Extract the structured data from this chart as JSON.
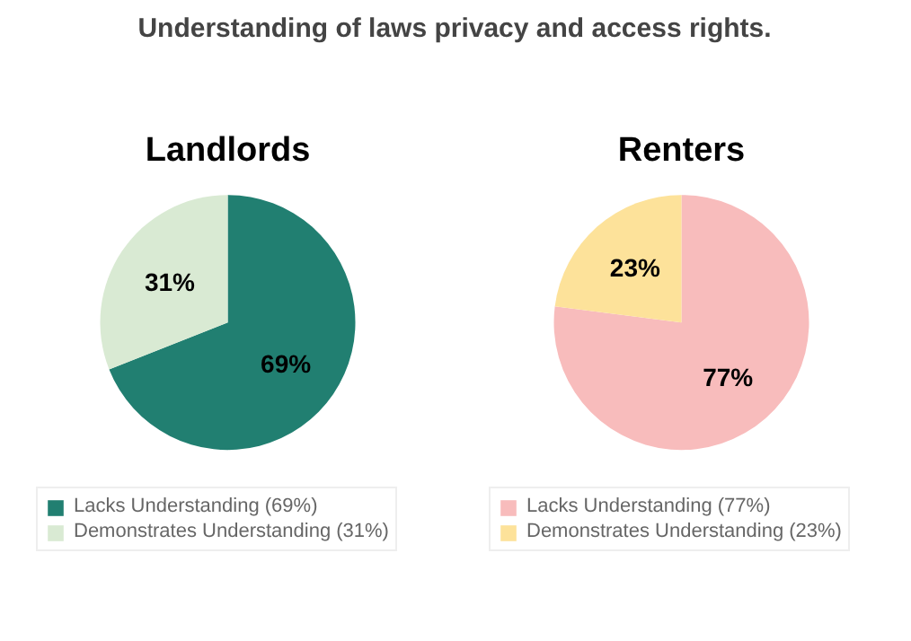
{
  "chart_data": [
    {
      "type": "pie",
      "title": "Landlords",
      "annotations": [
        "Understanding of laws privacy and access rights."
      ],
      "categories": [
        "Lacks Understanding (69%)",
        "Demonstrates Understanding (31%)"
      ],
      "values": [
        69,
        31
      ],
      "colors": [
        "#217f71",
        "#d9ead3"
      ],
      "value_labels": [
        "69%",
        "31%"
      ],
      "legend": "bottom"
    },
    {
      "type": "pie",
      "title": "Renters",
      "categories": [
        "Lacks Understanding (77%)",
        "Demonstrates Understanding (23%)"
      ],
      "values": [
        77,
        23
      ],
      "colors": [
        "#f8bcbc",
        "#fde29a"
      ],
      "value_labels": [
        "77%",
        "23%"
      ],
      "legend": "bottom"
    }
  ]
}
